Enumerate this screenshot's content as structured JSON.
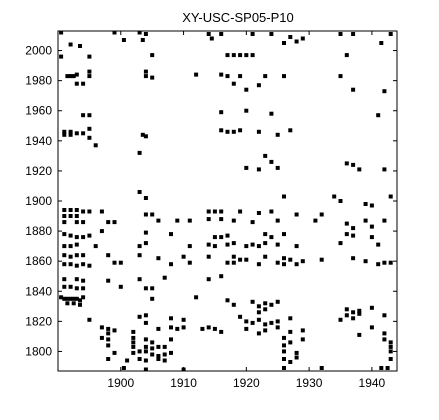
{
  "chart_data": {
    "type": "scatter",
    "title": "XY-USC-SP05-P10",
    "xlabel": "",
    "ylabel": "",
    "xlim": [
      1890,
      1944
    ],
    "ylim": [
      1787,
      2013
    ],
    "xticks": [
      1900,
      1910,
      1920,
      1930,
      1940
    ],
    "yticks": [
      1800,
      1820,
      1840,
      1860,
      1880,
      1900,
      1920,
      1940,
      1960,
      1980,
      2000
    ],
    "grid": false,
    "marker": "filled-square",
    "marker_color": "#000000",
    "points": [
      [
        1890.5,
        2012
      ],
      [
        1899,
        2012
      ],
      [
        1903,
        2012
      ],
      [
        1904,
        2011
      ],
      [
        1914,
        2011
      ],
      [
        1916,
        2011
      ],
      [
        1921,
        2011
      ],
      [
        1924,
        2011
      ],
      [
        1927,
        2009
      ],
      [
        1929,
        2008
      ],
      [
        1935,
        2011
      ],
      [
        1937,
        2011
      ],
      [
        1943,
        2011
      ],
      [
        1892,
        2004
      ],
      [
        1893.5,
        2003
      ],
      [
        1900.5,
        2007
      ],
      [
        1903.5,
        2007
      ],
      [
        1914.5,
        2008
      ],
      [
        1926,
        2005
      ],
      [
        1928,
        2006
      ],
      [
        1941.5,
        2005
      ],
      [
        1890.5,
        1996
      ],
      [
        1895,
        1996
      ],
      [
        1905,
        1997
      ],
      [
        1917,
        1997
      ],
      [
        1918,
        1997
      ],
      [
        1919,
        1997
      ],
      [
        1920,
        1997
      ],
      [
        1921,
        1997
      ],
      [
        1936,
        1997
      ],
      [
        1891.5,
        1983
      ],
      [
        1892,
        1983
      ],
      [
        1892.5,
        1983
      ],
      [
        1893,
        1984
      ],
      [
        1895,
        1986
      ],
      [
        1895,
        1983
      ],
      [
        1904,
        1986
      ],
      [
        1904,
        1983
      ],
      [
        1905,
        1982
      ],
      [
        1912,
        1984
      ],
      [
        1916,
        1984
      ],
      [
        1917,
        1983
      ],
      [
        1919,
        1983
      ],
      [
        1923,
        1983
      ],
      [
        1926,
        1983
      ],
      [
        1935,
        1983
      ],
      [
        1893,
        1978
      ],
      [
        1894,
        1978
      ],
      [
        1918,
        1978
      ],
      [
        1922,
        1977
      ],
      [
        1920,
        1974
      ],
      [
        1937,
        1974
      ],
      [
        1942,
        1973
      ],
      [
        1894,
        1957
      ],
      [
        1895,
        1957
      ],
      [
        1916,
        1959
      ],
      [
        1920,
        1960
      ],
      [
        1924,
        1958
      ],
      [
        1941,
        1957
      ],
      [
        1891,
        1946
      ],
      [
        1892,
        1946
      ],
      [
        1893,
        1945
      ],
      [
        1894,
        1945
      ],
      [
        1895,
        1948
      ],
      [
        1891,
        1944
      ],
      [
        1892,
        1944
      ],
      [
        1895,
        1942
      ],
      [
        1896,
        1937
      ],
      [
        1903.5,
        1944
      ],
      [
        1904,
        1943
      ],
      [
        1916,
        1947
      ],
      [
        1917,
        1946
      ],
      [
        1918,
        1946
      ],
      [
        1919,
        1947
      ],
      [
        1922,
        1946
      ],
      [
        1925,
        1944
      ],
      [
        1927,
        1947
      ],
      [
        1903,
        1932
      ],
      [
        1923,
        1930
      ],
      [
        1924,
        1926
      ],
      [
        1920,
        1922
      ],
      [
        1922,
        1921
      ],
      [
        1925,
        1922
      ],
      [
        1936,
        1925
      ],
      [
        1937,
        1924
      ],
      [
        1938,
        1921
      ],
      [
        1942,
        1921
      ],
      [
        1903,
        1906
      ],
      [
        1904,
        1902
      ],
      [
        1926,
        1903
      ],
      [
        1934,
        1903
      ],
      [
        1935,
        1900
      ],
      [
        1939,
        1898
      ],
      [
        1940,
        1897
      ],
      [
        1943,
        1903
      ],
      [
        1891,
        1894
      ],
      [
        1892,
        1894
      ],
      [
        1893,
        1894
      ],
      [
        1894,
        1893
      ],
      [
        1895,
        1893
      ],
      [
        1891,
        1890
      ],
      [
        1892,
        1890
      ],
      [
        1893,
        1890
      ],
      [
        1897,
        1893
      ],
      [
        1904,
        1891
      ],
      [
        1905,
        1891
      ],
      [
        1914,
        1893
      ],
      [
        1915,
        1893
      ],
      [
        1916,
        1893
      ],
      [
        1919,
        1893
      ],
      [
        1922,
        1892
      ],
      [
        1924,
        1893
      ],
      [
        1928,
        1891
      ],
      [
        1932,
        1891
      ],
      [
        1891,
        1886
      ],
      [
        1893,
        1886
      ],
      [
        1894,
        1886
      ],
      [
        1898,
        1886
      ],
      [
        1899,
        1886
      ],
      [
        1906,
        1887
      ],
      [
        1909,
        1887
      ],
      [
        1911,
        1887
      ],
      [
        1914,
        1888
      ],
      [
        1916,
        1888
      ],
      [
        1918,
        1887
      ],
      [
        1921,
        1886
      ],
      [
        1925,
        1887
      ],
      [
        1931,
        1887
      ],
      [
        1936,
        1885
      ],
      [
        1937,
        1882
      ],
      [
        1939,
        1887
      ],
      [
        1940,
        1883
      ],
      [
        1942,
        1887
      ],
      [
        1891,
        1878
      ],
      [
        1892,
        1877
      ],
      [
        1893,
        1876
      ],
      [
        1894,
        1876
      ],
      [
        1895,
        1877
      ],
      [
        1897,
        1880
      ],
      [
        1904,
        1879
      ],
      [
        1908,
        1878
      ],
      [
        1915,
        1876
      ],
      [
        1916,
        1876
      ],
      [
        1917,
        1877
      ],
      [
        1923,
        1878
      ],
      [
        1924,
        1876
      ],
      [
        1926,
        1878
      ],
      [
        1936,
        1878
      ],
      [
        1937,
        1877
      ],
      [
        1940,
        1876
      ],
      [
        1891,
        1870
      ],
      [
        1892,
        1870
      ],
      [
        1893,
        1871
      ],
      [
        1896,
        1870
      ],
      [
        1903,
        1870
      ],
      [
        1904,
        1872
      ],
      [
        1911,
        1870
      ],
      [
        1914,
        1871
      ],
      [
        1915,
        1870
      ],
      [
        1917,
        1871
      ],
      [
        1918,
        1872
      ],
      [
        1920,
        1870
      ],
      [
        1921,
        1871
      ],
      [
        1922,
        1870
      ],
      [
        1923,
        1872
      ],
      [
        1925,
        1871
      ],
      [
        1928,
        1870
      ],
      [
        1935,
        1872
      ],
      [
        1941,
        1871
      ],
      [
        1891,
        1864
      ],
      [
        1892,
        1863
      ],
      [
        1893,
        1864
      ],
      [
        1894,
        1864
      ],
      [
        1898,
        1864
      ],
      [
        1903,
        1864
      ],
      [
        1906,
        1862
      ],
      [
        1910,
        1863
      ],
      [
        1914,
        1863
      ],
      [
        1918,
        1863
      ],
      [
        1919,
        1861
      ],
      [
        1920,
        1861
      ],
      [
        1923,
        1863
      ],
      [
        1926,
        1862
      ],
      [
        1927,
        1861
      ],
      [
        1929,
        1860
      ],
      [
        1932,
        1861
      ],
      [
        1937,
        1862
      ],
      [
        1939,
        1860
      ],
      [
        1942,
        1859
      ],
      [
        1891,
        1858
      ],
      [
        1892,
        1858
      ],
      [
        1893,
        1857
      ],
      [
        1894,
        1858
      ],
      [
        1895,
        1857
      ],
      [
        1899,
        1859
      ],
      [
        1900,
        1859
      ],
      [
        1908,
        1858
      ],
      [
        1911,
        1859
      ],
      [
        1917,
        1859
      ],
      [
        1918,
        1859
      ],
      [
        1922,
        1858
      ],
      [
        1925,
        1859
      ],
      [
        1926,
        1858
      ],
      [
        1928,
        1858
      ],
      [
        1941,
        1858
      ],
      [
        1943,
        1859
      ],
      [
        1891,
        1848
      ],
      [
        1893,
        1848
      ],
      [
        1894,
        1847
      ],
      [
        1898,
        1847
      ],
      [
        1903,
        1848
      ],
      [
        1907,
        1849
      ],
      [
        1914,
        1848
      ],
      [
        1916,
        1850
      ],
      [
        1891,
        1843
      ],
      [
        1892,
        1843
      ],
      [
        1893,
        1842
      ],
      [
        1894,
        1842
      ],
      [
        1900,
        1843
      ],
      [
        1904,
        1842
      ],
      [
        1905,
        1842
      ],
      [
        1890.5,
        1836
      ],
      [
        1891,
        1835
      ],
      [
        1891.5,
        1835
      ],
      [
        1892,
        1835
      ],
      [
        1892.5,
        1835
      ],
      [
        1893,
        1835
      ],
      [
        1893.5,
        1834
      ],
      [
        1894,
        1836
      ],
      [
        1891.5,
        1832
      ],
      [
        1892.5,
        1832
      ],
      [
        1893.5,
        1831
      ],
      [
        1905,
        1835
      ],
      [
        1912,
        1836
      ],
      [
        1917,
        1834
      ],
      [
        1918,
        1831
      ],
      [
        1921,
        1833
      ],
      [
        1922,
        1830
      ],
      [
        1923,
        1832
      ],
      [
        1923,
        1828
      ],
      [
        1924,
        1831
      ],
      [
        1922,
        1826
      ],
      [
        1925,
        1833
      ],
      [
        1936,
        1828
      ],
      [
        1937,
        1826
      ],
      [
        1938,
        1827
      ],
      [
        1936,
        1824
      ],
      [
        1937,
        1822
      ],
      [
        1938,
        1825
      ],
      [
        1940,
        1829
      ],
      [
        1942,
        1824
      ],
      [
        1895,
        1821
      ],
      [
        1903,
        1823
      ],
      [
        1904,
        1824
      ],
      [
        1904,
        1819
      ],
      [
        1908,
        1822
      ],
      [
        1910,
        1821
      ],
      [
        1919,
        1823
      ],
      [
        1920,
        1820
      ],
      [
        1921,
        1819
      ],
      [
        1922,
        1821
      ],
      [
        1923,
        1818
      ],
      [
        1924,
        1819
      ],
      [
        1925,
        1820
      ],
      [
        1927,
        1822
      ],
      [
        1935,
        1821
      ],
      [
        1897,
        1816
      ],
      [
        1898,
        1815
      ],
      [
        1899,
        1814
      ],
      [
        1898,
        1812
      ],
      [
        1902,
        1813
      ],
      [
        1906,
        1815
      ],
      [
        1908,
        1816
      ],
      [
        1909,
        1815
      ],
      [
        1910,
        1816
      ],
      [
        1913,
        1815
      ],
      [
        1914,
        1816
      ],
      [
        1915,
        1815
      ],
      [
        1916,
        1813
      ],
      [
        1920,
        1815
      ],
      [
        1922,
        1812
      ],
      [
        1923,
        1814
      ],
      [
        1925,
        1816
      ],
      [
        1927,
        1813
      ],
      [
        1929,
        1814
      ],
      [
        1938,
        1811
      ],
      [
        1940,
        1816
      ],
      [
        1942,
        1812
      ],
      [
        1897,
        1809
      ],
      [
        1898,
        1808
      ],
      [
        1902,
        1809
      ],
      [
        1902,
        1806
      ],
      [
        1904,
        1808
      ],
      [
        1905,
        1806
      ],
      [
        1908,
        1808
      ],
      [
        1926,
        1809
      ],
      [
        1927,
        1806
      ],
      [
        1929,
        1808
      ],
      [
        1942,
        1808
      ],
      [
        1943,
        1806
      ],
      [
        1898,
        1804
      ],
      [
        1902,
        1803
      ],
      [
        1904,
        1803
      ],
      [
        1905,
        1802
      ],
      [
        1906,
        1803
      ],
      [
        1907,
        1803
      ],
      [
        1926,
        1804
      ],
      [
        1943,
        1803
      ],
      [
        1899,
        1799
      ],
      [
        1902,
        1799
      ],
      [
        1903,
        1800
      ],
      [
        1904,
        1800
      ],
      [
        1905,
        1798
      ],
      [
        1906,
        1797
      ],
      [
        1907,
        1798
      ],
      [
        1908,
        1799
      ],
      [
        1926,
        1800
      ],
      [
        1928,
        1799
      ],
      [
        1943,
        1800
      ],
      [
        1898,
        1795
      ],
      [
        1901,
        1794
      ],
      [
        1903,
        1795
      ],
      [
        1904,
        1794
      ],
      [
        1906,
        1795
      ],
      [
        1907,
        1794
      ],
      [
        1926,
        1795
      ],
      [
        1927,
        1793
      ],
      [
        1928,
        1796
      ],
      [
        1943,
        1795
      ],
      [
        1900.5,
        1789
      ],
      [
        1904,
        1788
      ],
      [
        1910,
        1788
      ],
      [
        1926,
        1789
      ],
      [
        1932,
        1789
      ],
      [
        1941.5,
        1789
      ],
      [
        1942.5,
        1789
      ]
    ]
  }
}
